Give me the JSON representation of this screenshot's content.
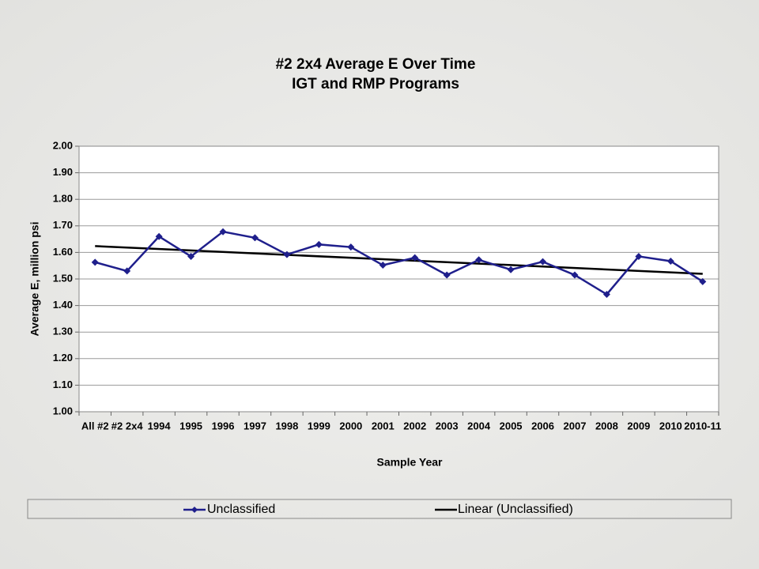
{
  "chart_data": {
    "type": "line",
    "title": "#2 2x4 Average E Over Time",
    "subtitle": "IGT and RMP Programs",
    "x_label": "Sample Year",
    "y_label": "Average E, million psi",
    "categories": [
      "All #2",
      "#2 2x4",
      "1994",
      "1995",
      "1996",
      "1997",
      "1998",
      "1999",
      "2000",
      "2001",
      "2002",
      "2003",
      "2004",
      "2005",
      "2006",
      "2007",
      "2008",
      "2009",
      "2010",
      "2010-11"
    ],
    "series": [
      {
        "name": "Unclassified",
        "color": "#1f1f8c",
        "values": [
          1.563,
          1.53,
          1.66,
          1.585,
          1.678,
          1.655,
          1.592,
          1.63,
          1.62,
          1.552,
          1.58,
          1.515,
          1.572,
          1.535,
          1.565,
          1.515,
          1.442,
          1.585,
          1.567,
          1.49
        ]
      }
    ],
    "trendline": {
      "name": "Linear (Unclassified)",
      "color": "#000000"
    },
    "ylim": [
      1,
      2
    ],
    "yticks": [
      {
        "value": 1,
        "label": "1.00"
      },
      {
        "value": 1.1,
        "label": "1.10"
      },
      {
        "value": 1.2,
        "label": "1.20"
      },
      {
        "value": 1.3,
        "label": "1.30"
      },
      {
        "value": 1.4,
        "label": "1.40"
      },
      {
        "value": 1.5,
        "label": "1.50"
      },
      {
        "value": 1.6,
        "label": "1.60"
      },
      {
        "value": 1.7,
        "label": "1.70"
      },
      {
        "value": 1.8,
        "label": "1.80"
      },
      {
        "value": 1.9,
        "label": "1.90"
      },
      {
        "value": 2,
        "label": "2.00"
      }
    ],
    "grid": true,
    "legend": "bottom"
  }
}
